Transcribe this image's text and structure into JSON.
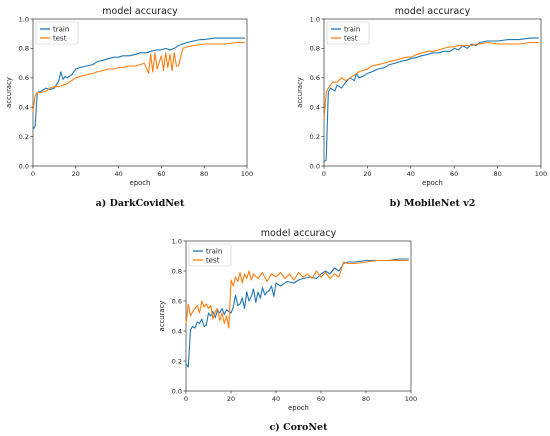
{
  "colors": {
    "train": "#1f77b4",
    "test": "#ff7f0e"
  },
  "chart_data": [
    {
      "type": "line",
      "title": "model accuracy",
      "caption": "a) DarkCovidNet",
      "xlabel": "epoch",
      "ylabel": "accuracy",
      "xlim": [
        0,
        100
      ],
      "ylim": [
        0.0,
        1.0
      ],
      "xticks": [
        "0",
        "20",
        "40",
        "60",
        "80",
        "100"
      ],
      "yticks": [
        "0.0",
        "0.2",
        "0.4",
        "0.6",
        "0.8",
        "1.0"
      ],
      "legend": "top-left",
      "series": [
        {
          "name": "train",
          "x": [
            0,
            1,
            2,
            4,
            6,
            8,
            10,
            12,
            13,
            14,
            15,
            16,
            18,
            20,
            22,
            25,
            28,
            30,
            33,
            35,
            38,
            40,
            42,
            45,
            48,
            50,
            53,
            55,
            58,
            60,
            62,
            64,
            66,
            68,
            70,
            72,
            75,
            78,
            80,
            85,
            90,
            95,
            99
          ],
          "y": [
            0.25,
            0.27,
            0.5,
            0.51,
            0.53,
            0.52,
            0.53,
            0.58,
            0.64,
            0.59,
            0.61,
            0.6,
            0.62,
            0.66,
            0.67,
            0.68,
            0.69,
            0.71,
            0.72,
            0.73,
            0.74,
            0.74,
            0.75,
            0.75,
            0.76,
            0.77,
            0.77,
            0.78,
            0.79,
            0.79,
            0.8,
            0.79,
            0.8,
            0.82,
            0.83,
            0.84,
            0.85,
            0.86,
            0.86,
            0.87,
            0.87,
            0.87,
            0.87
          ]
        },
        {
          "name": "test",
          "x": [
            0,
            1,
            2,
            4,
            6,
            8,
            10,
            12,
            14,
            16,
            18,
            20,
            22,
            25,
            28,
            30,
            33,
            35,
            38,
            40,
            42,
            45,
            48,
            50,
            52,
            54,
            55,
            56,
            57,
            58,
            60,
            61,
            62,
            63,
            64,
            65,
            66,
            67,
            68,
            70,
            72,
            75,
            80,
            85,
            90,
            95,
            99
          ],
          "y": [
            0.37,
            0.48,
            0.5,
            0.5,
            0.51,
            0.53,
            0.54,
            0.54,
            0.55,
            0.56,
            0.58,
            0.6,
            0.61,
            0.62,
            0.63,
            0.64,
            0.65,
            0.66,
            0.66,
            0.67,
            0.67,
            0.68,
            0.68,
            0.69,
            0.7,
            0.63,
            0.76,
            0.64,
            0.77,
            0.66,
            0.75,
            0.65,
            0.77,
            0.67,
            0.76,
            0.65,
            0.77,
            0.68,
            0.68,
            0.8,
            0.81,
            0.82,
            0.83,
            0.83,
            0.83,
            0.84,
            0.84
          ]
        }
      ]
    },
    {
      "type": "line",
      "title": "model accuracy",
      "caption": "b) MobileNet v2",
      "xlabel": "epoch",
      "ylabel": "accuracy",
      "xlim": [
        0,
        100
      ],
      "ylim": [
        0.0,
        1.0
      ],
      "xticks": [
        "0",
        "20",
        "40",
        "60",
        "80",
        "100"
      ],
      "yticks": [
        "0.0",
        "0.2",
        "0.4",
        "0.6",
        "0.8",
        "1.0"
      ],
      "legend": "top-left",
      "series": [
        {
          "name": "train",
          "x": [
            0,
            1,
            2,
            3,
            4,
            5,
            6,
            8,
            10,
            12,
            14,
            15,
            16,
            18,
            20,
            22,
            25,
            28,
            30,
            33,
            35,
            38,
            40,
            43,
            45,
            48,
            50,
            53,
            55,
            58,
            60,
            62,
            64,
            66,
            68,
            70,
            72,
            75,
            80,
            85,
            90,
            95,
            99
          ],
          "y": [
            0.03,
            0.04,
            0.5,
            0.53,
            0.52,
            0.51,
            0.55,
            0.53,
            0.57,
            0.6,
            0.58,
            0.63,
            0.6,
            0.61,
            0.63,
            0.64,
            0.66,
            0.67,
            0.69,
            0.7,
            0.71,
            0.72,
            0.73,
            0.74,
            0.75,
            0.76,
            0.77,
            0.77,
            0.78,
            0.78,
            0.8,
            0.79,
            0.82,
            0.8,
            0.83,
            0.82,
            0.84,
            0.85,
            0.85,
            0.86,
            0.86,
            0.87,
            0.87
          ]
        },
        {
          "name": "test",
          "x": [
            0,
            1,
            2,
            4,
            6,
            8,
            10,
            12,
            14,
            16,
            18,
            20,
            22,
            25,
            28,
            30,
            33,
            35,
            38,
            40,
            43,
            45,
            48,
            50,
            53,
            55,
            58,
            60,
            62,
            65,
            68,
            70,
            72,
            75,
            80,
            85,
            90,
            95,
            99
          ],
          "y": [
            0.32,
            0.5,
            0.53,
            0.57,
            0.57,
            0.6,
            0.58,
            0.6,
            0.62,
            0.64,
            0.65,
            0.66,
            0.68,
            0.69,
            0.7,
            0.71,
            0.72,
            0.73,
            0.74,
            0.74,
            0.76,
            0.77,
            0.78,
            0.78,
            0.79,
            0.8,
            0.81,
            0.81,
            0.82,
            0.82,
            0.82,
            0.83,
            0.83,
            0.84,
            0.83,
            0.83,
            0.83,
            0.84,
            0.84
          ]
        }
      ]
    },
    {
      "type": "line",
      "title": "model accuracy",
      "caption": "c) CoroNet",
      "xlabel": "epoch",
      "ylabel": "accuracy",
      "xlim": [
        0,
        100
      ],
      "ylim": [
        0.0,
        1.0
      ],
      "xticks": [
        "0",
        "20",
        "40",
        "60",
        "80",
        "100"
      ],
      "yticks": [
        "0.0",
        "0.2",
        "0.4",
        "0.6",
        "0.8",
        "1.0"
      ],
      "legend": "top-left",
      "series": [
        {
          "name": "train",
          "x": [
            0,
            1,
            2,
            3,
            4,
            5,
            6,
            7,
            8,
            9,
            10,
            11,
            12,
            13,
            14,
            15,
            16,
            17,
            18,
            19,
            20,
            21,
            22,
            23,
            24,
            25,
            26,
            27,
            28,
            29,
            30,
            31,
            32,
            33,
            34,
            35,
            36,
            37,
            38,
            39,
            40,
            42,
            45,
            48,
            50,
            52,
            55,
            58,
            60,
            62,
            64,
            66,
            68,
            70,
            72,
            75,
            80,
            85,
            90,
            95,
            99
          ],
          "y": [
            0.18,
            0.16,
            0.41,
            0.43,
            0.42,
            0.46,
            0.45,
            0.48,
            0.43,
            0.44,
            0.52,
            0.5,
            0.53,
            0.49,
            0.54,
            0.52,
            0.55,
            0.51,
            0.54,
            0.53,
            0.52,
            0.56,
            0.64,
            0.57,
            0.58,
            0.62,
            0.55,
            0.66,
            0.6,
            0.63,
            0.68,
            0.59,
            0.66,
            0.62,
            0.69,
            0.64,
            0.66,
            0.67,
            0.7,
            0.63,
            0.72,
            0.7,
            0.73,
            0.72,
            0.74,
            0.75,
            0.76,
            0.75,
            0.78,
            0.8,
            0.78,
            0.82,
            0.8,
            0.85,
            0.86,
            0.86,
            0.87,
            0.87,
            0.87,
            0.88,
            0.88
          ]
        },
        {
          "name": "test",
          "x": [
            0,
            1,
            2,
            3,
            4,
            5,
            6,
            7,
            8,
            9,
            10,
            11,
            12,
            13,
            14,
            15,
            16,
            17,
            18,
            19,
            20,
            21,
            22,
            23,
            24,
            25,
            26,
            27,
            28,
            29,
            30,
            32,
            34,
            36,
            38,
            40,
            42,
            44,
            46,
            48,
            50,
            52,
            54,
            56,
            58,
            60,
            62,
            64,
            66,
            68,
            70,
            72,
            75,
            80,
            85,
            90,
            95,
            99
          ],
          "y": [
            0.45,
            0.58,
            0.5,
            0.53,
            0.55,
            0.57,
            0.52,
            0.6,
            0.56,
            0.58,
            0.55,
            0.57,
            0.48,
            0.53,
            0.55,
            0.47,
            0.52,
            0.45,
            0.5,
            0.42,
            0.74,
            0.7,
            0.76,
            0.73,
            0.79,
            0.72,
            0.78,
            0.75,
            0.8,
            0.74,
            0.78,
            0.75,
            0.79,
            0.73,
            0.78,
            0.76,
            0.79,
            0.75,
            0.78,
            0.74,
            0.79,
            0.76,
            0.78,
            0.75,
            0.8,
            0.76,
            0.79,
            0.75,
            0.78,
            0.76,
            0.86,
            0.85,
            0.85,
            0.86,
            0.87,
            0.87,
            0.87,
            0.87
          ]
        }
      ]
    }
  ]
}
